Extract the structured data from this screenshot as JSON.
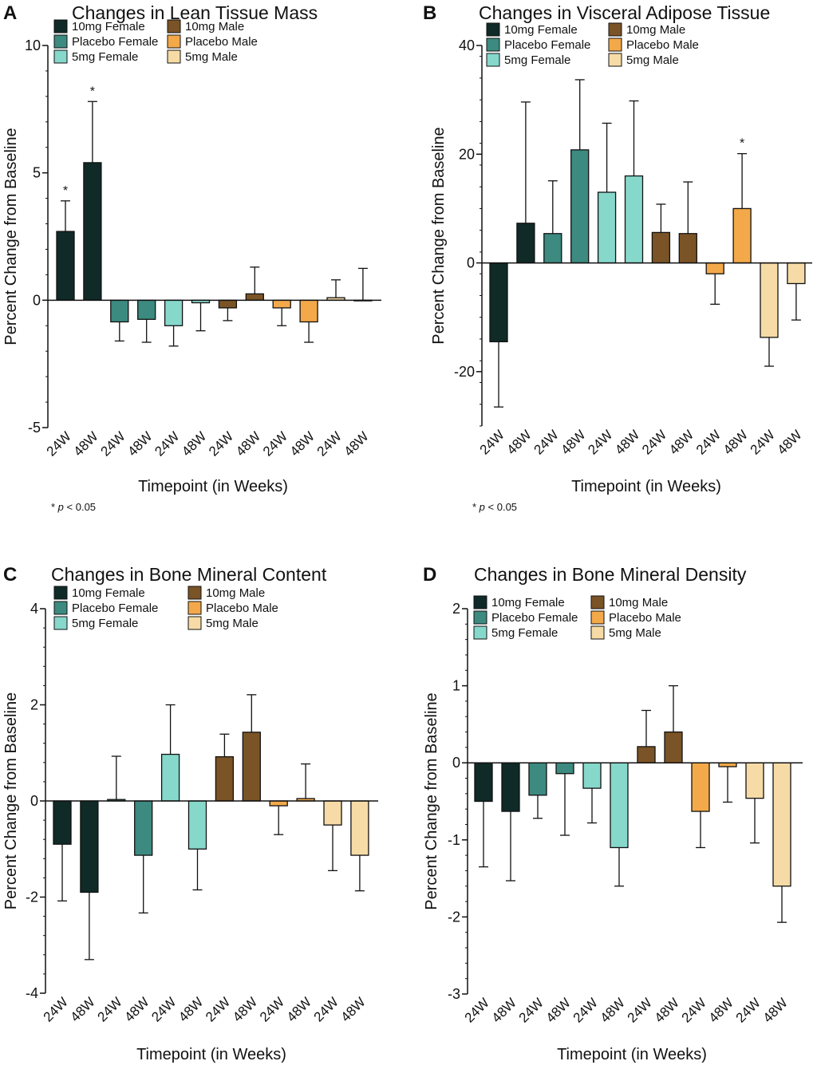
{
  "colors": {
    "10mg Female": "#0f2a27",
    "Placebo Female": "#3c8a80",
    "5mg Female": "#86d8cb",
    "10mg Male": "#7a5326",
    "Placebo Male": "#f3a94a",
    "5mg Male": "#f6dba6"
  },
  "chart_data": [
    {
      "panel": "A",
      "type": "bar",
      "title": "Changes in Lean Tissue Mass",
      "xlabel": "Timepoint (in Weeks)",
      "ylabel": "Percent Change from Baseline",
      "ylim": [
        -5,
        10
      ],
      "yticks": [
        -5,
        0,
        5,
        10
      ],
      "categories": [
        "24W",
        "48W",
        "24W",
        "48W",
        "24W",
        "48W",
        "24W",
        "48W",
        "24W",
        "48W",
        "24W",
        "48W"
      ],
      "groups": [
        "10mg Female",
        "10mg Female",
        "Placebo Female",
        "Placebo Female",
        "5mg Female",
        "5mg Female",
        "10mg Male",
        "10mg Male",
        "Placebo Male",
        "Placebo Male",
        "5mg Male",
        "5mg Male"
      ],
      "values": [
        2.7,
        5.4,
        -0.85,
        -0.75,
        -1.0,
        -0.1,
        -0.3,
        0.25,
        -0.3,
        -0.85,
        0.1,
        0.0
      ],
      "errors": [
        1.2,
        2.4,
        0.75,
        0.9,
        0.8,
        1.1,
        0.5,
        1.05,
        0.7,
        0.8,
        0.7,
        1.25
      ],
      "significance": [
        "*",
        "*",
        "",
        "",
        "",
        "",
        "",
        "",
        "",
        "",
        "",
        ""
      ],
      "legend": [
        "10mg Female",
        "Placebo Female",
        "5mg Female",
        "10mg Male",
        "Placebo Male",
        "5mg Male"
      ],
      "footnote": "* p < 0.05"
    },
    {
      "panel": "B",
      "type": "bar",
      "title": "Changes in Visceral Adipose Tissue",
      "xlabel": "Timepoint (in Weeks)",
      "ylabel": "Percent Change from Baseline",
      "ylim": [
        -30,
        40
      ],
      "yticks": [
        -20,
        0,
        20,
        40
      ],
      "categories": [
        "24W",
        "48W",
        "24W",
        "48W",
        "24W",
        "48W",
        "24W",
        "48W",
        "24W",
        "48W",
        "24W",
        "48W"
      ],
      "groups": [
        "10mg Female",
        "10mg Female",
        "Placebo Female",
        "Placebo Female",
        "5mg Female",
        "5mg Female",
        "10mg Male",
        "10mg Male",
        "Placebo Male",
        "Placebo Male",
        "5mg Male",
        "5mg Male"
      ],
      "values": [
        -14.5,
        7.3,
        5.4,
        20.8,
        13.0,
        16.0,
        5.6,
        5.4,
        -2.0,
        10.0,
        -13.7,
        -3.8
      ],
      "errors": [
        12.0,
        22.3,
        9.7,
        12.9,
        12.7,
        13.8,
        5.2,
        9.5,
        5.6,
        10.1,
        5.3,
        6.7
      ],
      "significance": [
        "",
        "",
        "",
        "",
        "",
        "",
        "",
        "",
        "",
        "*",
        "",
        ""
      ],
      "legend": [
        "10mg Female",
        "Placebo Female",
        "5mg Female",
        "10mg Male",
        "Placebo Male",
        "5mg Male"
      ],
      "footnote": "* p < 0.05"
    },
    {
      "panel": "C",
      "type": "bar",
      "title": "Changes in Bone Mineral Content",
      "xlabel": "Timepoint (in Weeks)",
      "ylabel": "Percent Change from Baseline",
      "ylim": [
        -4,
        4
      ],
      "yticks": [
        -4,
        -2,
        0,
        2,
        4
      ],
      "categories": [
        "24W",
        "48W",
        "24W",
        "48W",
        "24W",
        "48W",
        "24W",
        "48W",
        "24W",
        "48W",
        "24W",
        "48W"
      ],
      "groups": [
        "10mg Female",
        "10mg Female",
        "Placebo Female",
        "Placebo Female",
        "5mg Female",
        "5mg Female",
        "10mg Male",
        "10mg Male",
        "Placebo Male",
        "Placebo Male",
        "5mg Male",
        "5mg Male"
      ],
      "values": [
        -0.9,
        -1.9,
        0.03,
        -1.13,
        0.97,
        -1.0,
        0.92,
        1.43,
        -0.1,
        0.05,
        -0.5,
        -1.13
      ],
      "errors": [
        1.18,
        1.4,
        0.9,
        1.2,
        1.03,
        0.85,
        0.47,
        0.78,
        0.6,
        0.72,
        0.95,
        0.74
      ],
      "significance": [
        "",
        "",
        "",
        "",
        "",
        "",
        "",
        "",
        "",
        "",
        "",
        ""
      ],
      "legend": [
        "10mg Female",
        "Placebo Female",
        "5mg Female",
        "10mg Male",
        "Placebo Male",
        "5mg Male"
      ]
    },
    {
      "panel": "D",
      "type": "bar",
      "title": "Changes in Bone Mineral Density",
      "xlabel": "Timepoint (in Weeks)",
      "ylabel": "Percent Change from Baseline",
      "ylim": [
        -3,
        2
      ],
      "yticks": [
        -3,
        -2,
        -1,
        0,
        1,
        2
      ],
      "categories": [
        "24W",
        "48W",
        "24W",
        "48W",
        "24W",
        "48W",
        "24W",
        "48W",
        "24W",
        "48W",
        "24W",
        "48W"
      ],
      "groups": [
        "10mg Female",
        "10mg Female",
        "Placebo Female",
        "Placebo Female",
        "5mg Female",
        "5mg Female",
        "10mg Male",
        "10mg Male",
        "Placebo Male",
        "Placebo Male",
        "5mg Male",
        "5mg Male"
      ],
      "values": [
        -0.5,
        -0.63,
        -0.42,
        -0.14,
        -0.33,
        -1.1,
        0.21,
        0.4,
        -0.63,
        -0.05,
        -0.46,
        -1.6
      ],
      "errors": [
        0.85,
        0.9,
        0.3,
        0.8,
        0.45,
        0.5,
        0.47,
        0.6,
        0.47,
        0.46,
        0.58,
        0.47
      ],
      "significance": [
        "",
        "",
        "",
        "",
        "",
        "",
        "",
        "",
        "",
        "",
        "",
        ""
      ],
      "legend": [
        "10mg Female",
        "Placebo Female",
        "5mg Female",
        "10mg Male",
        "Placebo Male",
        "5mg Male"
      ]
    }
  ]
}
